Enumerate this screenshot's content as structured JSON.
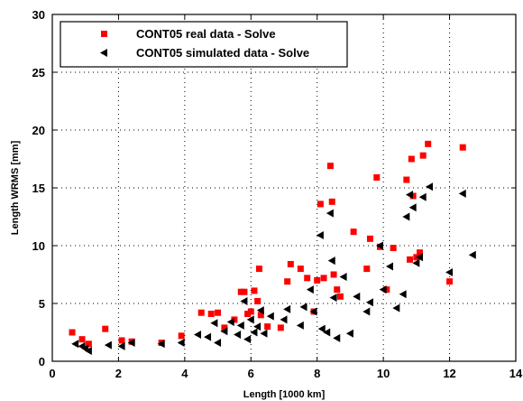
{
  "chart_data": {
    "type": "scatter",
    "xlabel": "Length [1000 km]",
    "ylabel": "Length WRMS [mm]",
    "xlim": [
      0,
      14
    ],
    "ylim": [
      0,
      30
    ],
    "xticks": [
      0,
      2,
      4,
      6,
      8,
      10,
      12,
      14
    ],
    "yticks": [
      0,
      5,
      10,
      15,
      20,
      25,
      30
    ],
    "grid": true,
    "legend_position": "top-left",
    "series": [
      {
        "name": "CONT05 real data - Solve",
        "marker": "square",
        "color": "#ff0000",
        "points": [
          [
            0.6,
            2.5
          ],
          [
            0.9,
            1.9
          ],
          [
            1.1,
            1.5
          ],
          [
            1.6,
            2.8
          ],
          [
            2.1,
            1.8
          ],
          [
            2.4,
            1.7
          ],
          [
            3.3,
            1.6
          ],
          [
            3.9,
            2.2
          ],
          [
            4.5,
            4.2
          ],
          [
            4.8,
            4.1
          ],
          [
            5.0,
            4.2
          ],
          [
            5.2,
            2.9
          ],
          [
            5.5,
            3.6
          ],
          [
            5.7,
            6.0
          ],
          [
            5.8,
            6.0
          ],
          [
            5.9,
            4.1
          ],
          [
            6.0,
            4.3
          ],
          [
            6.1,
            6.1
          ],
          [
            6.2,
            5.2
          ],
          [
            6.25,
            8.0
          ],
          [
            6.3,
            4.0
          ],
          [
            6.5,
            3.0
          ],
          [
            6.9,
            2.9
          ],
          [
            7.1,
            6.9
          ],
          [
            7.2,
            8.4
          ],
          [
            7.5,
            8.0
          ],
          [
            7.7,
            7.2
          ],
          [
            7.9,
            4.3
          ],
          [
            8.0,
            7.0
          ],
          [
            8.1,
            13.6
          ],
          [
            8.2,
            7.2
          ],
          [
            8.4,
            16.9
          ],
          [
            8.45,
            13.8
          ],
          [
            8.5,
            7.5
          ],
          [
            8.6,
            6.2
          ],
          [
            8.7,
            5.6
          ],
          [
            9.1,
            11.2
          ],
          [
            9.5,
            8.0
          ],
          [
            9.6,
            10.6
          ],
          [
            9.8,
            15.9
          ],
          [
            9.9,
            9.9
          ],
          [
            10.1,
            6.2
          ],
          [
            10.3,
            9.8
          ],
          [
            10.7,
            15.7
          ],
          [
            10.8,
            8.8
          ],
          [
            10.85,
            17.5
          ],
          [
            10.9,
            14.3
          ],
          [
            11.0,
            9.0
          ],
          [
            11.1,
            9.4
          ],
          [
            11.2,
            17.8
          ],
          [
            11.35,
            18.8
          ],
          [
            12.0,
            6.9
          ],
          [
            12.4,
            18.5
          ]
        ]
      },
      {
        "name": "CONT05 simulated data - Solve",
        "marker": "triangle-left",
        "color": "#000000",
        "points": [
          [
            0.7,
            1.5
          ],
          [
            0.9,
            1.3
          ],
          [
            1.0,
            1.1
          ],
          [
            1.1,
            0.9
          ],
          [
            1.7,
            1.4
          ],
          [
            2.1,
            1.3
          ],
          [
            2.4,
            1.6
          ],
          [
            3.3,
            1.5
          ],
          [
            3.9,
            1.6
          ],
          [
            4.4,
            2.3
          ],
          [
            4.7,
            2.1
          ],
          [
            4.9,
            3.3
          ],
          [
            5.0,
            1.6
          ],
          [
            5.2,
            2.6
          ],
          [
            5.4,
            3.4
          ],
          [
            5.6,
            2.3
          ],
          [
            5.7,
            3.1
          ],
          [
            5.8,
            5.2
          ],
          [
            5.9,
            1.9
          ],
          [
            6.0,
            3.6
          ],
          [
            6.1,
            2.5
          ],
          [
            6.2,
            3.0
          ],
          [
            6.3,
            4.4
          ],
          [
            6.4,
            2.4
          ],
          [
            6.6,
            3.9
          ],
          [
            7.0,
            3.6
          ],
          [
            7.1,
            4.5
          ],
          [
            7.5,
            3.1
          ],
          [
            7.6,
            4.7
          ],
          [
            7.8,
            6.2
          ],
          [
            7.9,
            4.3
          ],
          [
            8.1,
            10.9
          ],
          [
            8.15,
            2.8
          ],
          [
            8.3,
            2.5
          ],
          [
            8.4,
            12.8
          ],
          [
            8.45,
            8.7
          ],
          [
            8.5,
            5.5
          ],
          [
            8.6,
            2.0
          ],
          [
            8.8,
            7.3
          ],
          [
            9.0,
            2.4
          ],
          [
            9.2,
            5.6
          ],
          [
            9.5,
            4.3
          ],
          [
            9.6,
            5.1
          ],
          [
            9.9,
            10.0
          ],
          [
            10.0,
            6.2
          ],
          [
            10.2,
            8.2
          ],
          [
            10.4,
            4.6
          ],
          [
            10.6,
            5.8
          ],
          [
            10.7,
            12.5
          ],
          [
            10.8,
            14.4
          ],
          [
            10.9,
            13.3
          ],
          [
            11.0,
            8.5
          ],
          [
            11.1,
            9.0
          ],
          [
            11.2,
            14.2
          ],
          [
            11.4,
            15.1
          ],
          [
            12.0,
            7.7
          ],
          [
            12.4,
            14.5
          ],
          [
            12.7,
            9.2
          ]
        ]
      }
    ]
  }
}
